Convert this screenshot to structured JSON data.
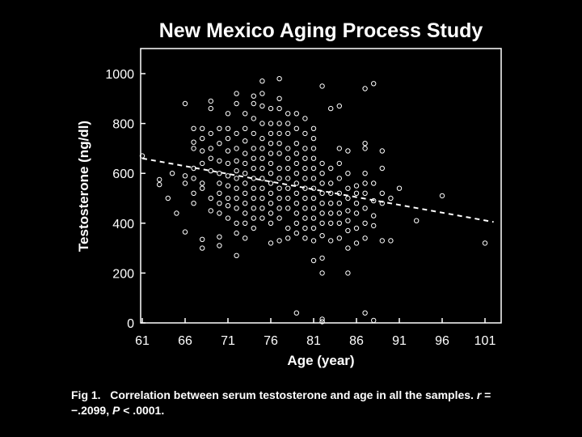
{
  "chart_data": {
    "type": "scatter",
    "title": "New Mexico Aging Process Study",
    "xlabel": "Age (year)",
    "ylabel": "Testosterone (ng/dl)",
    "xlim": [
      61,
      102
    ],
    "ylim": [
      0,
      1100
    ],
    "xticks": [
      61,
      66,
      71,
      76,
      81,
      86,
      91,
      96,
      101
    ],
    "yticks": [
      0,
      200,
      400,
      600,
      800,
      1000
    ],
    "grid": false,
    "legend": "none",
    "marker": "open-circle",
    "trend_line": {
      "style": "dashed",
      "from": [
        61,
        660
      ],
      "to": [
        102,
        405
      ]
    },
    "points": [
      [
        61,
        670
      ],
      [
        63,
        575
      ],
      [
        63,
        555
      ],
      [
        64,
        500
      ],
      [
        64.5,
        600
      ],
      [
        65,
        440
      ],
      [
        66,
        880
      ],
      [
        66,
        560
      ],
      [
        66,
        590
      ],
      [
        66,
        365
      ],
      [
        67,
        520
      ],
      [
        67,
        620
      ],
      [
        67,
        780
      ],
      [
        67,
        700
      ],
      [
        67,
        725
      ],
      [
        67,
        580
      ],
      [
        67,
        480
      ],
      [
        68,
        780
      ],
      [
        68,
        740
      ],
      [
        68,
        690
      ],
      [
        68,
        640
      ],
      [
        68,
        560
      ],
      [
        68,
        540
      ],
      [
        68,
        335
      ],
      [
        68,
        300
      ],
      [
        69,
        890
      ],
      [
        69,
        860
      ],
      [
        69,
        760
      ],
      [
        69,
        700
      ],
      [
        69,
        660
      ],
      [
        69,
        610
      ],
      [
        69,
        500
      ],
      [
        69,
        450
      ],
      [
        70,
        780
      ],
      [
        70,
        720
      ],
      [
        70,
        650
      ],
      [
        70,
        600
      ],
      [
        70,
        560
      ],
      [
        70,
        520
      ],
      [
        70,
        480
      ],
      [
        70,
        440
      ],
      [
        70,
        345
      ],
      [
        70,
        310
      ],
      [
        71,
        840
      ],
      [
        71,
        780
      ],
      [
        71,
        740
      ],
      [
        71,
        690
      ],
      [
        71,
        640
      ],
      [
        71,
        590
      ],
      [
        71,
        550
      ],
      [
        71,
        500
      ],
      [
        71,
        470
      ],
      [
        71,
        420
      ],
      [
        72,
        920
      ],
      [
        72,
        880
      ],
      [
        72,
        760
      ],
      [
        72,
        700
      ],
      [
        72,
        650
      ],
      [
        72,
        610
      ],
      [
        72,
        580
      ],
      [
        72,
        540
      ],
      [
        72,
        500
      ],
      [
        72,
        460
      ],
      [
        72,
        400
      ],
      [
        72,
        360
      ],
      [
        72,
        270
      ],
      [
        73,
        840
      ],
      [
        73,
        780
      ],
      [
        73,
        730
      ],
      [
        73,
        680
      ],
      [
        73,
        640
      ],
      [
        73,
        600
      ],
      [
        73,
        560
      ],
      [
        73,
        520
      ],
      [
        73,
        480
      ],
      [
        73,
        440
      ],
      [
        73,
        400
      ],
      [
        73,
        340
      ],
      [
        74,
        910
      ],
      [
        74,
        880
      ],
      [
        74,
        820
      ],
      [
        74,
        760
      ],
      [
        74,
        700
      ],
      [
        74,
        660
      ],
      [
        74,
        620
      ],
      [
        74,
        580
      ],
      [
        74,
        540
      ],
      [
        74,
        500
      ],
      [
        74,
        460
      ],
      [
        74,
        420
      ],
      [
        74,
        380
      ],
      [
        75,
        970
      ],
      [
        75,
        920
      ],
      [
        75,
        870
      ],
      [
        75,
        800
      ],
      [
        75,
        740
      ],
      [
        75,
        700
      ],
      [
        75,
        660
      ],
      [
        75,
        620
      ],
      [
        75,
        580
      ],
      [
        75,
        540
      ],
      [
        75,
        500
      ],
      [
        75,
        460
      ],
      [
        75,
        420
      ],
      [
        76,
        860
      ],
      [
        76,
        800
      ],
      [
        76,
        760
      ],
      [
        76,
        720
      ],
      [
        76,
        680
      ],
      [
        76,
        640
      ],
      [
        76,
        600
      ],
      [
        76,
        560
      ],
      [
        76,
        520
      ],
      [
        76,
        480
      ],
      [
        76,
        440
      ],
      [
        76,
        400
      ],
      [
        76,
        320
      ],
      [
        77,
        980
      ],
      [
        77,
        900
      ],
      [
        77,
        860
      ],
      [
        77,
        800
      ],
      [
        77,
        760
      ],
      [
        77,
        720
      ],
      [
        77,
        680
      ],
      [
        77,
        620
      ],
      [
        77,
        580
      ],
      [
        77,
        540
      ],
      [
        77,
        500
      ],
      [
        77,
        460
      ],
      [
        77,
        420
      ],
      [
        77,
        330
      ],
      [
        78,
        840
      ],
      [
        78,
        800
      ],
      [
        78,
        760
      ],
      [
        78,
        700
      ],
      [
        78,
        660
      ],
      [
        78,
        620
      ],
      [
        78,
        580
      ],
      [
        78,
        540
      ],
      [
        78,
        500
      ],
      [
        78,
        460
      ],
      [
        78,
        380
      ],
      [
        78,
        340
      ],
      [
        79,
        840
      ],
      [
        79,
        780
      ],
      [
        79,
        720
      ],
      [
        79,
        680
      ],
      [
        79,
        640
      ],
      [
        79,
        600
      ],
      [
        79,
        560
      ],
      [
        79,
        520
      ],
      [
        79,
        480
      ],
      [
        79,
        440
      ],
      [
        79,
        400
      ],
      [
        79,
        360
      ],
      [
        79,
        40
      ],
      [
        80,
        820
      ],
      [
        80,
        760
      ],
      [
        80,
        700
      ],
      [
        80,
        660
      ],
      [
        80,
        620
      ],
      [
        80,
        580
      ],
      [
        80,
        540
      ],
      [
        80,
        500
      ],
      [
        80,
        460
      ],
      [
        80,
        420
      ],
      [
        80,
        380
      ],
      [
        80,
        340
      ],
      [
        81,
        780
      ],
      [
        81,
        740
      ],
      [
        81,
        700
      ],
      [
        81,
        660
      ],
      [
        81,
        620
      ],
      [
        81,
        580
      ],
      [
        81,
        540
      ],
      [
        81,
        500
      ],
      [
        81,
        460
      ],
      [
        81,
        420
      ],
      [
        81,
        380
      ],
      [
        81,
        330
      ],
      [
        81,
        250
      ],
      [
        82,
        950
      ],
      [
        82,
        640
      ],
      [
        82,
        600
      ],
      [
        82,
        560
      ],
      [
        82,
        520
      ],
      [
        82,
        480
      ],
      [
        82,
        440
      ],
      [
        82,
        400
      ],
      [
        82,
        350
      ],
      [
        82,
        260
      ],
      [
        82,
        200
      ],
      [
        82,
        15
      ],
      [
        82,
        5
      ],
      [
        83,
        860
      ],
      [
        83,
        620
      ],
      [
        83,
        560
      ],
      [
        83,
        520
      ],
      [
        83,
        480
      ],
      [
        83,
        440
      ],
      [
        83,
        400
      ],
      [
        83,
        330
      ],
      [
        84,
        870
      ],
      [
        84,
        700
      ],
      [
        84,
        640
      ],
      [
        84,
        580
      ],
      [
        84,
        520
      ],
      [
        84,
        480
      ],
      [
        84,
        440
      ],
      [
        84,
        400
      ],
      [
        84,
        340
      ],
      [
        85,
        690
      ],
      [
        85,
        600
      ],
      [
        85,
        540
      ],
      [
        85,
        500
      ],
      [
        85,
        450
      ],
      [
        85,
        410
      ],
      [
        85,
        370
      ],
      [
        85,
        300
      ],
      [
        85,
        200
      ],
      [
        86,
        550
      ],
      [
        86,
        520
      ],
      [
        86,
        480
      ],
      [
        86,
        440
      ],
      [
        86,
        380
      ],
      [
        86,
        320
      ],
      [
        87,
        940
      ],
      [
        87,
        720
      ],
      [
        87,
        700
      ],
      [
        87,
        600
      ],
      [
        87,
        560
      ],
      [
        87,
        520
      ],
      [
        87,
        460
      ],
      [
        87,
        400
      ],
      [
        87,
        340
      ],
      [
        87,
        40
      ],
      [
        88,
        960
      ],
      [
        88,
        560
      ],
      [
        88,
        490
      ],
      [
        88,
        430
      ],
      [
        88,
        390
      ],
      [
        88,
        10
      ],
      [
        89,
        690
      ],
      [
        89,
        620
      ],
      [
        89,
        520
      ],
      [
        89,
        480
      ],
      [
        89,
        330
      ],
      [
        90,
        500
      ],
      [
        90,
        330
      ],
      [
        91,
        540
      ],
      [
        93,
        410
      ],
      [
        96,
        510
      ],
      [
        101,
        320
      ]
    ]
  },
  "caption": {
    "label": "Fig 1.",
    "text": "Correlation between serum testosterone and age in all the samples.",
    "stat_r_symbol": "r",
    "stat_r_value": " = −.2099, ",
    "stat_p_symbol": "P",
    "stat_p_value": " < .0001."
  },
  "colors": {
    "background": "#000000",
    "foreground": "#ffffff"
  }
}
